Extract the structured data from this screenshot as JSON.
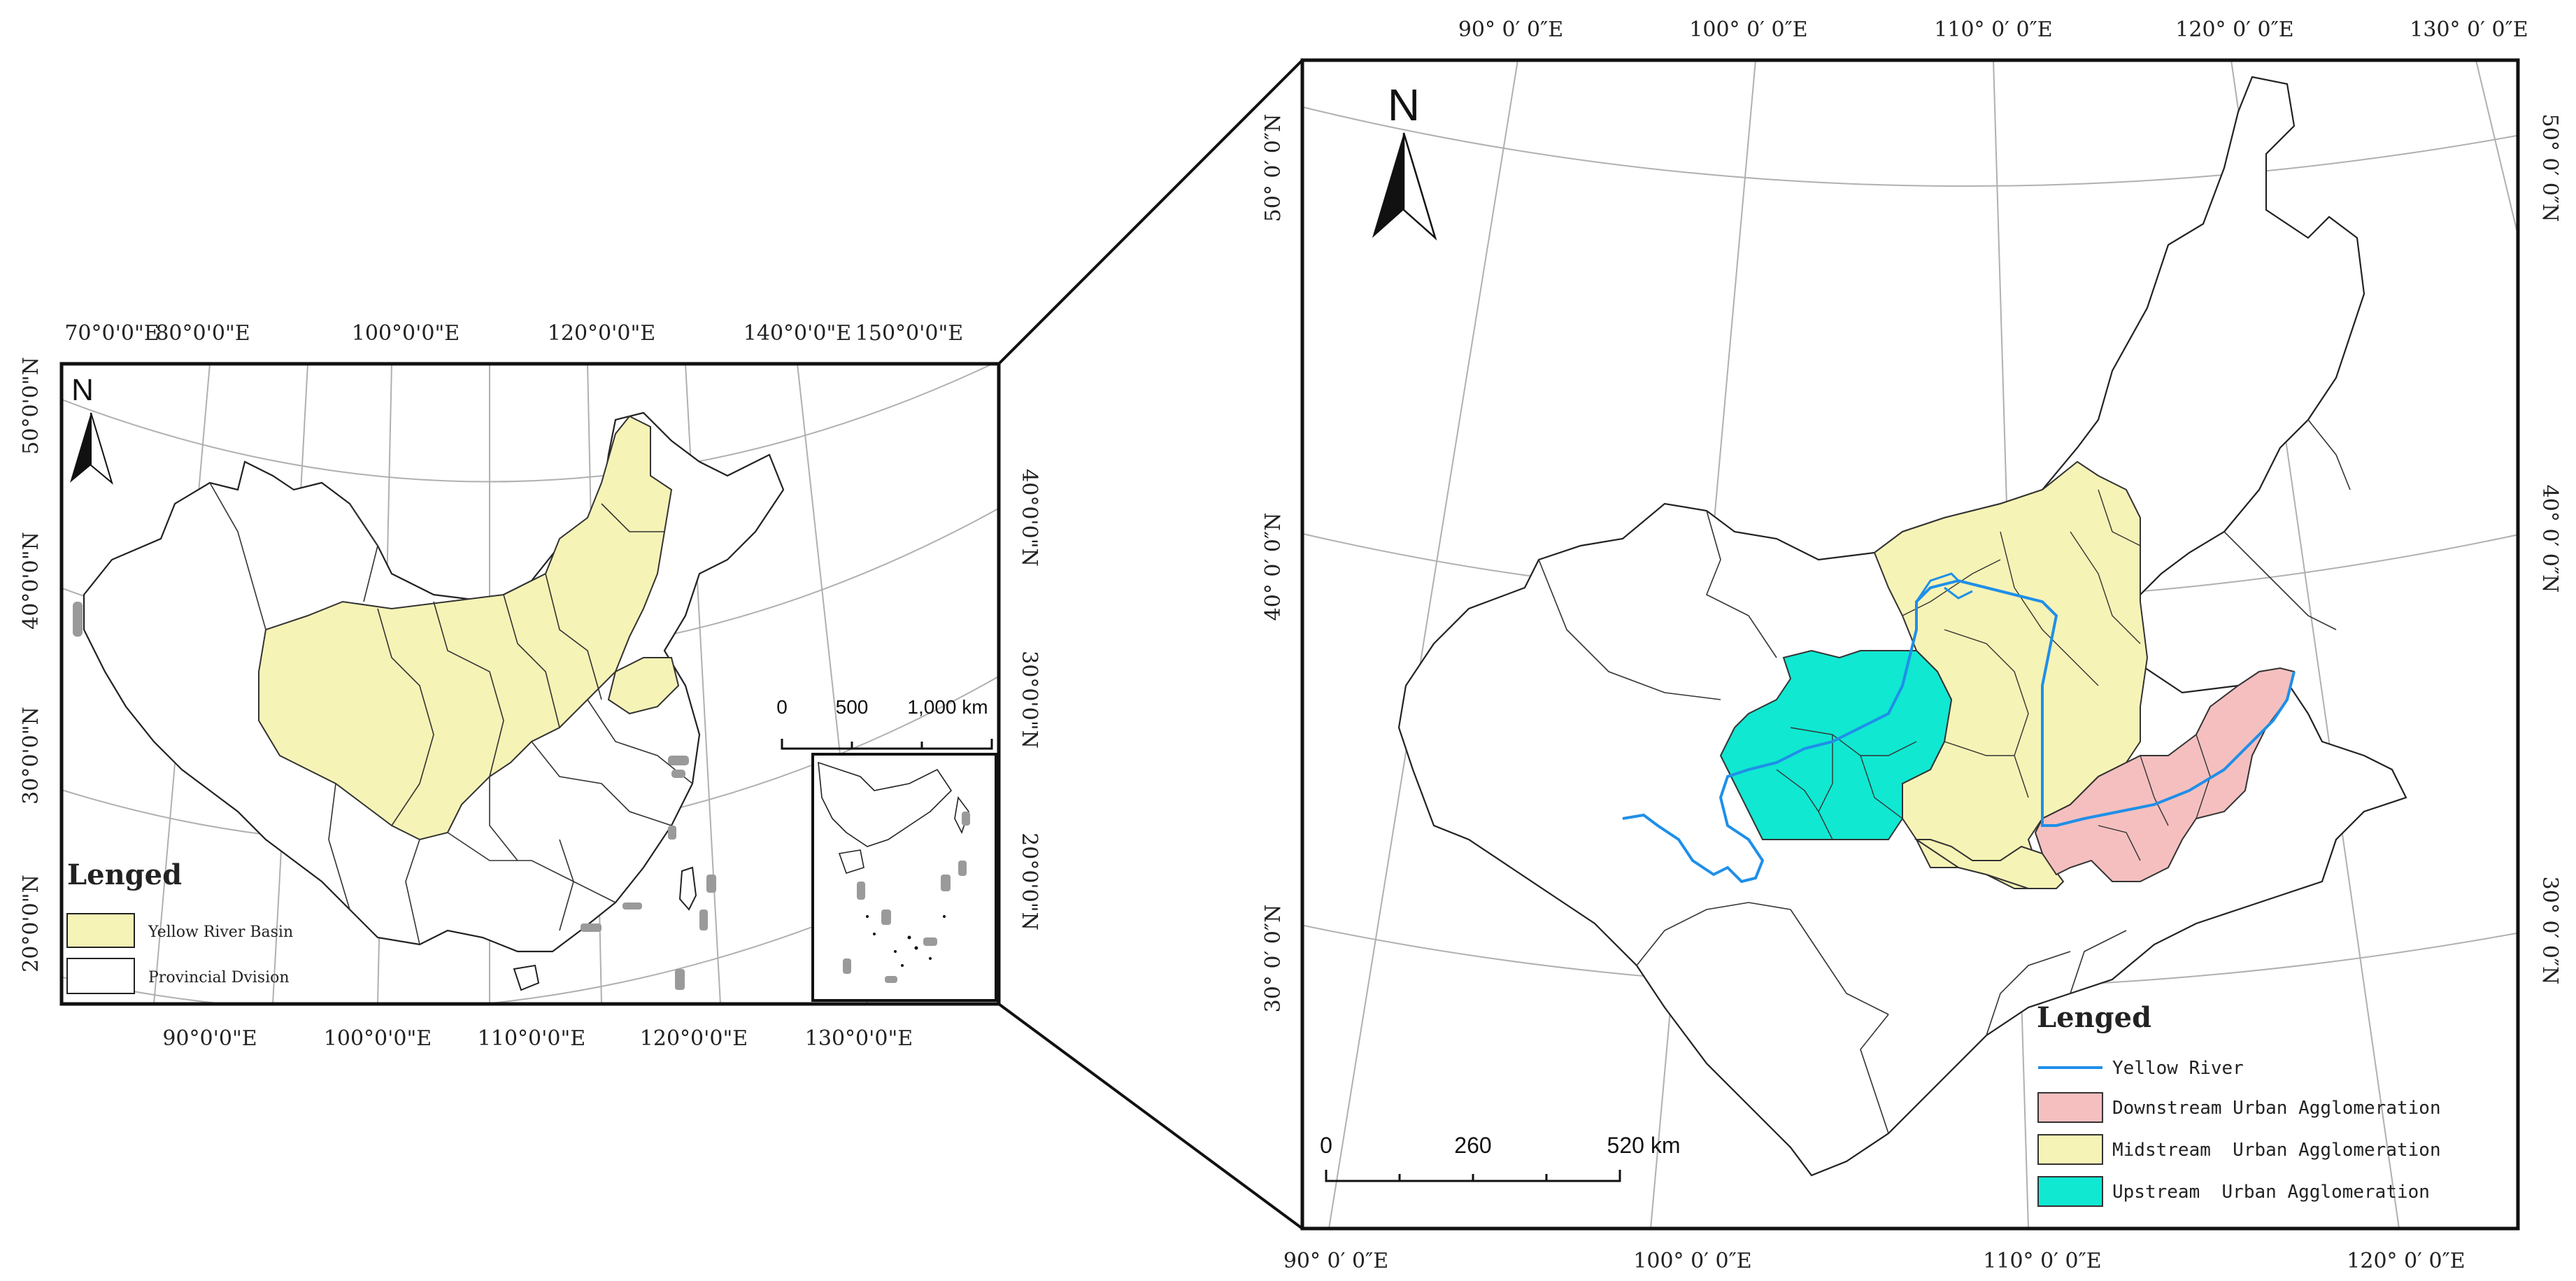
{
  "overview_map": {
    "north_label": "N",
    "top_ticks": [
      "70°0'0\"E",
      "80°0'0\"E",
      "100°0'0\"E",
      "120°0'0\"E",
      "140°0'0\"E",
      "150°0'0\"E"
    ],
    "bottom_ticks": [
      "90°0'0\"E",
      "100°0'0\"E",
      "110°0'0\"E",
      "120°0'0\"E",
      "130°0'0\"E"
    ],
    "left_ticks": [
      "50°0'0\"N",
      "40°0'0\"N",
      "30°0'0\"N",
      "20°0'0\"N"
    ],
    "right_ticks": [
      "40°0'0\"N",
      "30°0'0\"N",
      "20°0'0\"N"
    ],
    "scale": {
      "labels": [
        "0",
        "500",
        "1,000 km"
      ]
    },
    "legend": {
      "title": "Lenged",
      "items": [
        {
          "label": "Yellow River Basin",
          "color": "#f6f3b6"
        },
        {
          "label": "Provincial Dvision",
          "color": "#ffffff"
        }
      ]
    }
  },
  "detail_map": {
    "north_label": "N",
    "top_ticks": [
      "90° 0′ 0″E",
      "100° 0′ 0″E",
      "110° 0′ 0″E",
      "120° 0′ 0″E",
      "130° 0′ 0″E"
    ],
    "bottom_ticks": [
      "90° 0′ 0″E",
      "100° 0′ 0″E",
      "110° 0′ 0″E",
      "120° 0′ 0″E"
    ],
    "left_ticks": [
      "50° 0′ 0″N",
      "40° 0′ 0″N",
      "30° 0′ 0″N"
    ],
    "right_ticks": [
      "50° 0′ 0″N",
      "40° 0′ 0″N",
      "30° 0′ 0″N"
    ],
    "scale": {
      "labels": [
        "0",
        "260",
        "520 km"
      ]
    },
    "legend": {
      "title": "Lenged",
      "items": [
        {
          "label": "Yellow River",
          "color": "#1f8fe8",
          "kind": "line"
        },
        {
          "label": "Downstream Urban Agglomeration",
          "color": "#f5bfbf",
          "kind": "fill"
        },
        {
          "label": "Midstream  Urban Agglomeration",
          "color": "#f6f3b6",
          "kind": "fill"
        },
        {
          "label": "Upstream  Urban Agglomeration",
          "color": "#10e8d2",
          "kind": "fill"
        }
      ]
    }
  }
}
